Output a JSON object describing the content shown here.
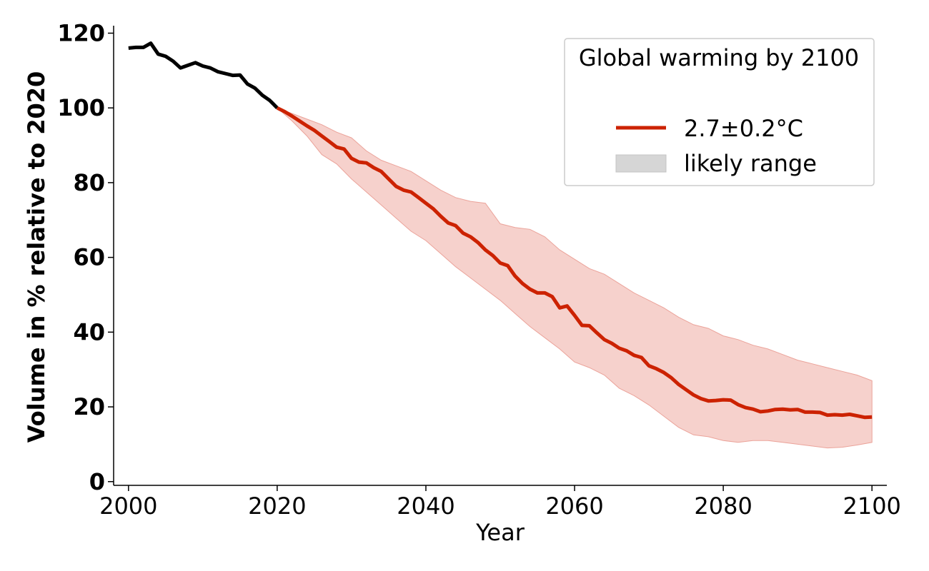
{
  "chart_data": {
    "type": "line",
    "title": "",
    "xlabel": "Year",
    "ylabel": "Volume in % relative to 2020",
    "xlim": [
      1998,
      2102
    ],
    "ylim": [
      -1,
      122
    ],
    "xticks": [
      2000,
      2020,
      2040,
      2060,
      2080,
      2100
    ],
    "yticks": [
      0,
      20,
      40,
      60,
      80,
      100,
      120
    ],
    "xtick_labels": [
      "2000",
      "2020",
      "2040",
      "2060",
      "2080",
      "2100"
    ],
    "ytick_labels": [
      "0",
      "20",
      "40",
      "60",
      "80",
      "100",
      "120"
    ],
    "grid": false,
    "legend": {
      "placement": "top-right",
      "title": "Global warming by 2100",
      "entries": [
        {
          "label": "2.7±0.2°C",
          "kind": "line",
          "color": "#cc2200"
        },
        {
          "label": "likely range",
          "kind": "patch",
          "color": "#d6d6d6"
        }
      ]
    },
    "series": [
      {
        "name": "observed",
        "color": "#000000",
        "x": [
          2000,
          2001,
          2002,
          2003,
          2004,
          2005,
          2006,
          2007,
          2008,
          2009,
          2010,
          2011,
          2012,
          2013,
          2014,
          2015,
          2016,
          2017,
          2018,
          2019,
          2020
        ],
        "values": [
          116,
          116.2,
          116.2,
          117.3,
          114.4,
          113.8,
          112.5,
          110.7,
          111.4,
          112.1,
          111.2,
          110.7,
          109.7,
          109.2,
          108.7,
          108.8,
          106.4,
          105.3,
          103.4,
          102.0,
          100
        ]
      },
      {
        "name": "2.7±0.2°C",
        "color": "#cc2200",
        "x": [
          2020,
          2021,
          2022,
          2023,
          2024,
          2025,
          2026,
          2027,
          2028,
          2029,
          2030,
          2031,
          2032,
          2033,
          2034,
          2035,
          2036,
          2037,
          2038,
          2039,
          2040,
          2041,
          2042,
          2043,
          2044,
          2045,
          2046,
          2047,
          2048,
          2049,
          2050,
          2051,
          2052,
          2053,
          2054,
          2055,
          2056,
          2057,
          2058,
          2059,
          2060,
          2061,
          2062,
          2063,
          2064,
          2065,
          2066,
          2067,
          2068,
          2069,
          2070,
          2071,
          2072,
          2073,
          2074,
          2075,
          2076,
          2077,
          2078,
          2079,
          2080,
          2081,
          2082,
          2083,
          2084,
          2085,
          2086,
          2087,
          2088,
          2089,
          2090,
          2091,
          2092,
          2093,
          2094,
          2095,
          2096,
          2097,
          2098,
          2099,
          2100
        ],
        "values": [
          100,
          99,
          97.8,
          96.5,
          95.2,
          94,
          92.5,
          91,
          89.5,
          89,
          86.5,
          85.5,
          85.3,
          84,
          83,
          81,
          79,
          78,
          77.5,
          76,
          74.5,
          73,
          71,
          69.2,
          68.5,
          66.5,
          65.5,
          64,
          62,
          60.5,
          58.5,
          57.8,
          55,
          53,
          51.5,
          50.5,
          50.5,
          49.5,
          46.5,
          47,
          44.5,
          41.8,
          41.7,
          39.8,
          38,
          37,
          35.7,
          35,
          33.8,
          33.2,
          31,
          30.2,
          29.2,
          27.8,
          26,
          24.6,
          23.2,
          22.2,
          21.6,
          21.7,
          21.9,
          21.8,
          20.6,
          19.8,
          19.4,
          18.7,
          18.9,
          19.3,
          19.4,
          19.2,
          19.3,
          18.6,
          18.6,
          18.5,
          17.8,
          17.9,
          17.8,
          18,
          17.6,
          17.2,
          17.3
        ]
      }
    ],
    "likely_range": {
      "name": "likely range",
      "color": "#f3c2bb",
      "x": [
        2020,
        2022,
        2024,
        2026,
        2028,
        2030,
        2032,
        2034,
        2036,
        2038,
        2040,
        2042,
        2044,
        2046,
        2048,
        2050,
        2052,
        2054,
        2056,
        2058,
        2060,
        2062,
        2064,
        2066,
        2068,
        2070,
        2072,
        2074,
        2076,
        2078,
        2080,
        2082,
        2084,
        2086,
        2088,
        2090,
        2092,
        2094,
        2096,
        2098,
        2100
      ],
      "lower": [
        100,
        96.5,
        92.5,
        87.5,
        85,
        81,
        77.5,
        74,
        70.5,
        67,
        64.5,
        61,
        57.5,
        54.5,
        51.5,
        48.5,
        45,
        41.5,
        38.5,
        35.5,
        32,
        30.5,
        28.5,
        25,
        23,
        20.5,
        17.5,
        14.5,
        12.5,
        12,
        11,
        10.5,
        11,
        11,
        10.5,
        10,
        9.5,
        9,
        9.2,
        9.8,
        10.5
      ],
      "upper": [
        100,
        98.5,
        97,
        95.5,
        93.5,
        92,
        88.5,
        86,
        84.5,
        83,
        80.5,
        78,
        76,
        75,
        74.5,
        69,
        68,
        67.5,
        65.5,
        62,
        59.5,
        57,
        55.5,
        53,
        50.5,
        48.5,
        46.5,
        44,
        42,
        41,
        39,
        38,
        36.5,
        35.5,
        34,
        32.5,
        31.5,
        30.5,
        29.5,
        28.5,
        27
      ]
    }
  }
}
